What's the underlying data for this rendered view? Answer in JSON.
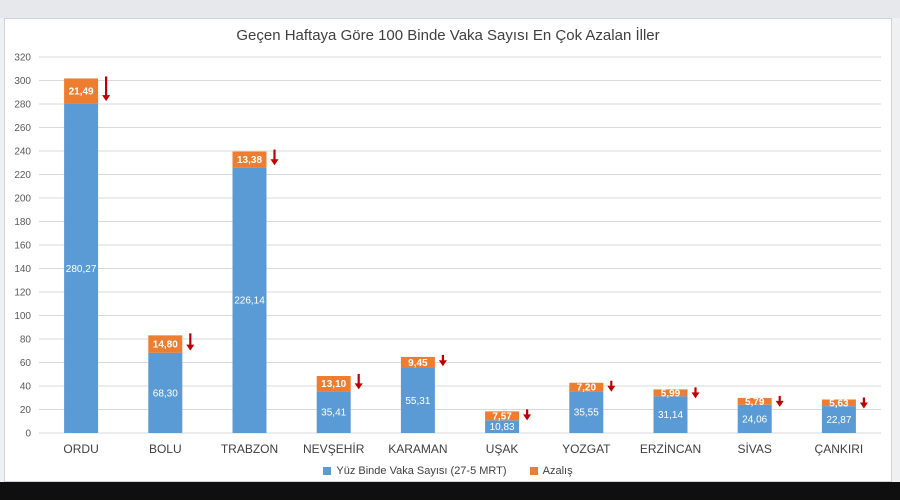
{
  "chart_data": {
    "type": "bar",
    "stacked": true,
    "title": "Geçen Haftaya Göre 100 Binde Vaka Sayısı En Çok Azalan İller",
    "xlabel": "",
    "ylabel": "",
    "ylim": [
      0,
      320
    ],
    "yticks": [
      0,
      20,
      40,
      60,
      80,
      100,
      120,
      140,
      160,
      180,
      200,
      220,
      240,
      260,
      280,
      300,
      320
    ],
    "grid": true,
    "legend_position": "bottom",
    "categories": [
      "ORDU",
      "BOLU",
      "TRABZON",
      "NEVŞEHİR",
      "KARAMAN",
      "UŞAK",
      "YOZGAT",
      "ERZİNCAN",
      "SİVAS",
      "ÇANKIRI"
    ],
    "series": [
      {
        "name": "Yüz Binde Vaka Sayısı (27-5 MRT)",
        "color": "#5b9bd5",
        "values": [
          280.27,
          68.3,
          226.14,
          35.41,
          55.31,
          10.83,
          35.55,
          31.14,
          24.06,
          22.87
        ],
        "labels": [
          "280,27",
          "68,30",
          "226,14",
          "35,41",
          "55,31",
          "10,83",
          "35,55",
          "31,14",
          "24,06",
          "22,87"
        ]
      },
      {
        "name": "Azalış",
        "color": "#ed7d31",
        "values": [
          21.49,
          14.8,
          13.38,
          13.1,
          9.45,
          7.57,
          7.2,
          5.99,
          5.79,
          5.63
        ],
        "labels": [
          "21,49",
          "14,80",
          "13,38",
          "13,10",
          "9,45",
          "7,57",
          "7,20",
          "5,99",
          "5,79",
          "5,63"
        ]
      }
    ],
    "annotation_color": "#c00000",
    "annotation_icon": "down-arrow-icon"
  }
}
